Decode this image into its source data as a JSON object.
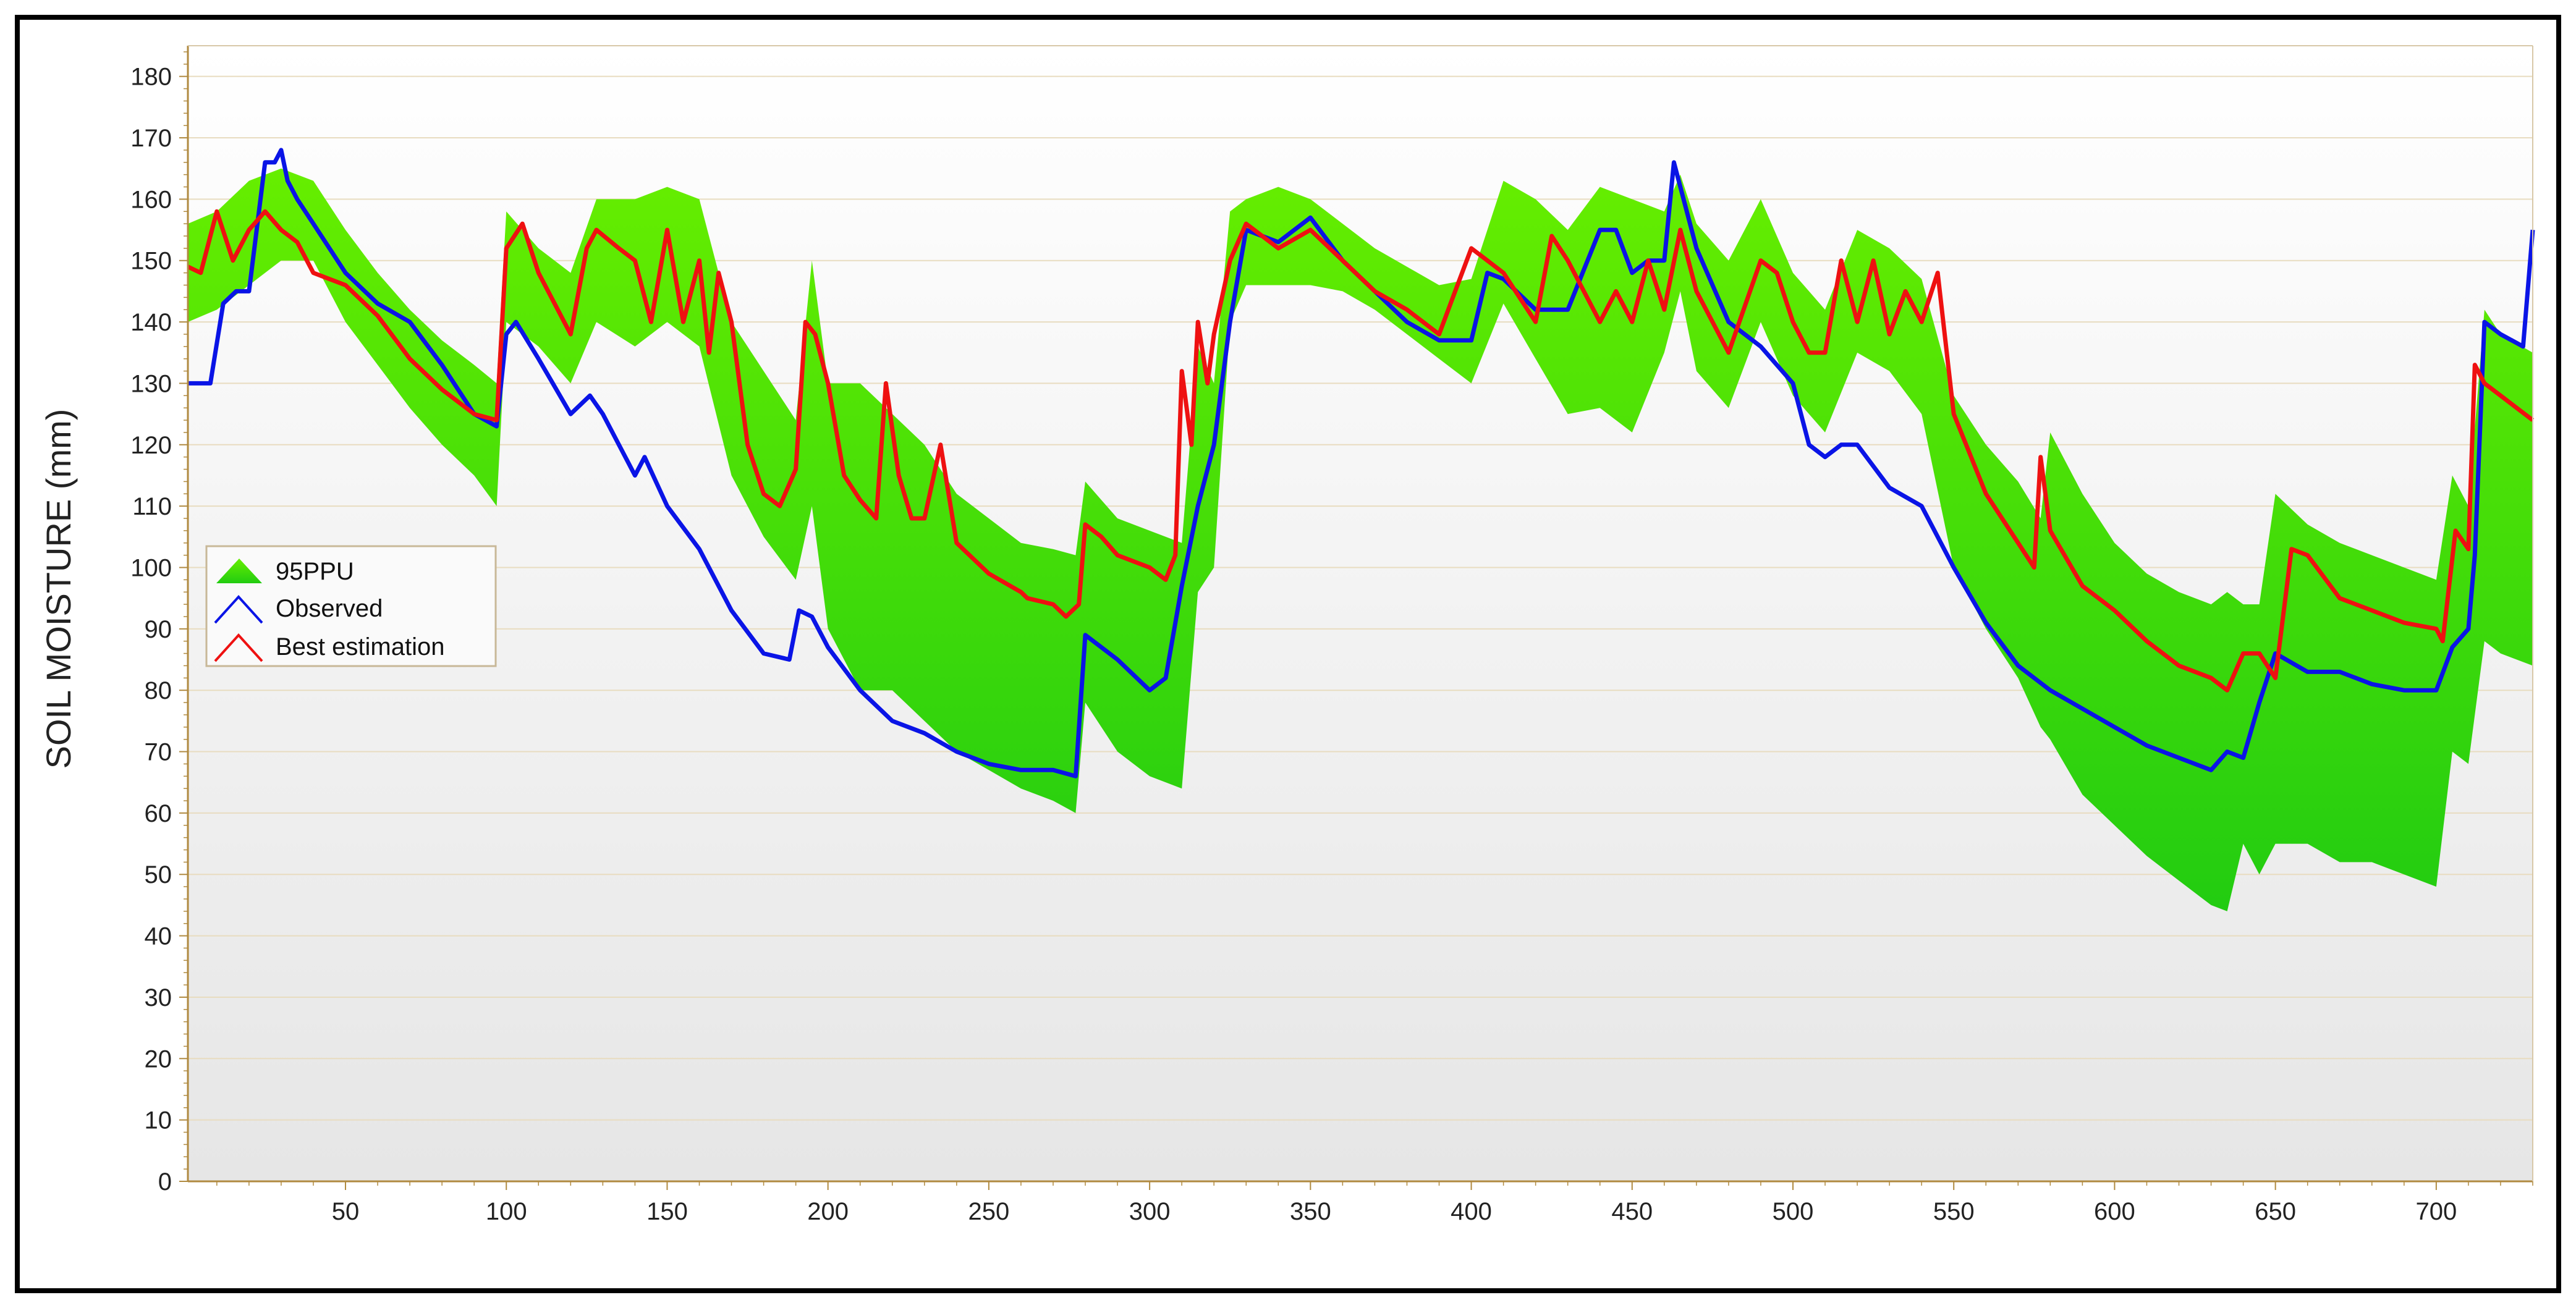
{
  "chart_data": {
    "type": "line",
    "title": "",
    "xlabel": "",
    "ylabel": "SOIL MOISTURE (mm)",
    "xlim": [
      1,
      730
    ],
    "ylim": [
      0,
      185
    ],
    "xticks": [
      50,
      100,
      150,
      200,
      250,
      300,
      350,
      400,
      450,
      500,
      550,
      600,
      650,
      700
    ],
    "yticks": [
      0,
      10,
      20,
      30,
      40,
      50,
      60,
      70,
      80,
      90,
      100,
      110,
      120,
      130,
      140,
      150,
      160,
      170,
      180
    ],
    "grid": "horizontal",
    "legend": "left-middle",
    "colors": {
      "band": "#44dd11",
      "band_light": "#66ee00",
      "observed": "#0a14e6",
      "best": "#ee1111",
      "gridline": "#e8dcc0",
      "axis": "#b08a40"
    },
    "band": {
      "name": "95PPU",
      "x": [
        1,
        10,
        20,
        30,
        40,
        50,
        60,
        70,
        80,
        90,
        97,
        100,
        110,
        120,
        128,
        140,
        150,
        160,
        170,
        180,
        190,
        195,
        200,
        210,
        220,
        230,
        240,
        250,
        260,
        270,
        277,
        280,
        290,
        300,
        310,
        315,
        320,
        325,
        330,
        340,
        350,
        360,
        370,
        380,
        390,
        400,
        410,
        420,
        430,
        440,
        450,
        460,
        465,
        470,
        480,
        490,
        500,
        510,
        520,
        530,
        540,
        550,
        560,
        570,
        577,
        580,
        590,
        600,
        610,
        620,
        630,
        635,
        640,
        645,
        650,
        660,
        670,
        680,
        690,
        700,
        705,
        710,
        715,
        720,
        730
      ],
      "upper": [
        156,
        158,
        163,
        165,
        163,
        155,
        148,
        142,
        137,
        133,
        130,
        158,
        152,
        148,
        160,
        160,
        162,
        160,
        140,
        132,
        124,
        150,
        130,
        130,
        125,
        120,
        112,
        108,
        104,
        103,
        102,
        114,
        108,
        106,
        104,
        136,
        130,
        158,
        160,
        162,
        160,
        156,
        152,
        149,
        146,
        147,
        163,
        160,
        155,
        162,
        160,
        158,
        164,
        156,
        150,
        160,
        148,
        142,
        155,
        152,
        147,
        128,
        120,
        114,
        108,
        122,
        112,
        104,
        99,
        96,
        94,
        96,
        94,
        94,
        112,
        107,
        104,
        102,
        100,
        98,
        115,
        110,
        142,
        138,
        135
      ],
      "lower": [
        140,
        142,
        146,
        150,
        150,
        140,
        133,
        126,
        120,
        115,
        110,
        140,
        136,
        130,
        140,
        136,
        140,
        136,
        115,
        105,
        98,
        110,
        90,
        80,
        80,
        75,
        70,
        67,
        64,
        62,
        60,
        78,
        70,
        66,
        64,
        96,
        100,
        140,
        146,
        146,
        146,
        145,
        142,
        138,
        134,
        130,
        143,
        134,
        125,
        126,
        122,
        135,
        145,
        132,
        126,
        140,
        128,
        122,
        135,
        132,
        125,
        100,
        90,
        82,
        74,
        72,
        63,
        58,
        53,
        49,
        45,
        44,
        55,
        50,
        55,
        55,
        52,
        52,
        50,
        48,
        70,
        68,
        88,
        86,
        84
      ]
    },
    "series": [
      {
        "name": "Observed",
        "x": [
          1,
          8,
          12,
          16,
          20,
          25,
          28,
          30,
          32,
          35,
          40,
          50,
          60,
          70,
          80,
          90,
          97,
          100,
          103,
          110,
          120,
          126,
          130,
          140,
          143,
          150,
          160,
          170,
          180,
          188,
          191,
          195,
          200,
          210,
          220,
          230,
          240,
          250,
          260,
          265,
          270,
          277,
          280,
          290,
          300,
          305,
          310,
          315,
          320,
          325,
          330,
          340,
          350,
          360,
          370,
          380,
          390,
          400,
          405,
          410,
          420,
          430,
          440,
          445,
          450,
          455,
          460,
          463,
          470,
          480,
          490,
          500,
          505,
          510,
          515,
          520,
          530,
          540,
          550,
          560,
          570,
          580,
          590,
          600,
          610,
          620,
          630,
          635,
          640,
          645,
          650,
          660,
          670,
          680,
          690,
          700,
          705,
          710,
          712,
          715,
          720,
          727,
          730
        ],
        "values": [
          130,
          130,
          143,
          145,
          145,
          166,
          166,
          168,
          163,
          160,
          156,
          148,
          143,
          140,
          133,
          125,
          123,
          138,
          140,
          134,
          125,
          128,
          125,
          115,
          118,
          110,
          103,
          93,
          86,
          85,
          93,
          92,
          87,
          80,
          75,
          73,
          70,
          68,
          67,
          67,
          67,
          66,
          89,
          85,
          80,
          82,
          97,
          110,
          120,
          140,
          155,
          153,
          157,
          150,
          145,
          140,
          137,
          137,
          148,
          147,
          142,
          142,
          155,
          155,
          148,
          150,
          150,
          166,
          152,
          140,
          136,
          130,
          120,
          118,
          120,
          120,
          113,
          110,
          100,
          91,
          84,
          80,
          77,
          74,
          71,
          69,
          67,
          70,
          69,
          78,
          86,
          83,
          83,
          81,
          80,
          80,
          87,
          90,
          102,
          140,
          138,
          136,
          155
        ]
      },
      {
        "name": "Best estimation",
        "x": [
          1,
          5,
          10,
          15,
          20,
          25,
          30,
          35,
          40,
          50,
          60,
          70,
          80,
          90,
          97,
          100,
          105,
          110,
          120,
          125,
          128,
          135,
          140,
          145,
          150,
          155,
          160,
          163,
          166,
          170,
          175,
          180,
          185,
          190,
          193,
          196,
          200,
          205,
          210,
          215,
          218,
          222,
          226,
          230,
          235,
          240,
          250,
          260,
          262,
          270,
          274,
          278,
          280,
          285,
          290,
          300,
          305,
          308,
          310,
          313,
          315,
          318,
          320,
          325,
          330,
          340,
          350,
          360,
          370,
          380,
          390,
          395,
          400,
          405,
          410,
          420,
          425,
          430,
          440,
          445,
          450,
          455,
          460,
          465,
          470,
          480,
          490,
          495,
          500,
          505,
          510,
          515,
          520,
          525,
          530,
          535,
          540,
          545,
          550,
          560,
          570,
          575,
          577,
          580,
          590,
          600,
          610,
          620,
          630,
          635,
          640,
          645,
          650,
          655,
          660,
          670,
          680,
          690,
          700,
          702,
          706,
          710,
          712,
          715,
          720,
          725,
          730
        ],
        "values": [
          149,
          148,
          158,
          150,
          155,
          158,
          155,
          153,
          148,
          146,
          141,
          134,
          129,
          125,
          124,
          152,
          156,
          148,
          138,
          152,
          155,
          152,
          150,
          140,
          155,
          140,
          150,
          135,
          148,
          140,
          120,
          112,
          110,
          116,
          140,
          138,
          130,
          115,
          111,
          108,
          130,
          115,
          108,
          108,
          120,
          104,
          99,
          96,
          95,
          94,
          92,
          94,
          107,
          105,
          102,
          100,
          98,
          102,
          132,
          120,
          140,
          130,
          138,
          150,
          156,
          152,
          155,
          150,
          145,
          142,
          138,
          145,
          152,
          150,
          148,
          140,
          154,
          150,
          140,
          145,
          140,
          150,
          142,
          155,
          145,
          135,
          150,
          148,
          140,
          135,
          135,
          150,
          140,
          150,
          138,
          145,
          140,
          148,
          125,
          112,
          104,
          100,
          118,
          106,
          97,
          93,
          88,
          84,
          82,
          80,
          86,
          86,
          82,
          103,
          102,
          95,
          93,
          91,
          90,
          88,
          106,
          103,
          133,
          130,
          128,
          126,
          124
        ]
      }
    ],
    "legend_items": [
      "95PPU",
      "Observed",
      "Best estimation"
    ]
  }
}
